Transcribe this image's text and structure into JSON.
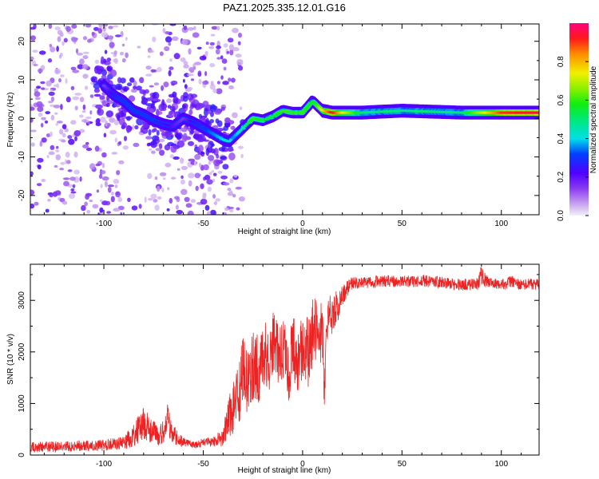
{
  "title": "PAZ1.2025.335.12.01.G16",
  "chart_data": [
    {
      "type": "heatmap",
      "id": "spectrogram",
      "xlabel": "Height of straight line (km)",
      "ylabel": "Frequency (Hz)",
      "xlim": [
        -137,
        119
      ],
      "ylim": [
        -25,
        24.5
      ],
      "xticks": [
        -100,
        -50,
        0,
        50,
        100
      ],
      "xtick_labels": [
        "-100",
        "-50",
        "0",
        "50",
        "100"
      ],
      "yticks": [
        -20,
        -10,
        0,
        10,
        20
      ],
      "ytick_labels": [
        "-20",
        "-10",
        "0",
        "10",
        "20"
      ],
      "ridge": {
        "x": [
          -100,
          -95,
          -90,
          -85,
          -80,
          -75,
          -70,
          -65,
          -60,
          -55,
          -50,
          -45,
          -40,
          -37,
          -35,
          -30,
          -25,
          -20,
          -15,
          -10,
          -5,
          0,
          5,
          7,
          10,
          15,
          20,
          30,
          50,
          80,
          100,
          119
        ],
        "y": [
          8.5,
          6,
          4.5,
          2,
          1,
          -0.5,
          -1.5,
          -2,
          0,
          -1,
          -2.5,
          -4,
          -5.5,
          -6,
          -5,
          -2.5,
          0,
          -0.5,
          0.5,
          2,
          1.5,
          1.5,
          4.5,
          3.5,
          2,
          1.5,
          1.5,
          1.5,
          2,
          1.5,
          1.5,
          1.5
        ],
        "amplitude": [
          0.15,
          0.25,
          0.3,
          0.3,
          0.3,
          0.3,
          0.25,
          0.2,
          0.15,
          0.25,
          0.3,
          0.35,
          0.4,
          0.45,
          0.35,
          0.45,
          0.6,
          0.55,
          0.55,
          0.6,
          0.6,
          0.6,
          0.55,
          0.6,
          0.75,
          0.95,
          0.75,
          0.5,
          0.5,
          0.5,
          0.9,
          0.95
        ]
      },
      "noise_band_x": [
        -137,
        -30
      ]
    },
    {
      "type": "colorbar",
      "id": "amplitude-colorbar",
      "label": "Normalized spectral amplitude",
      "range": [
        0,
        1
      ],
      "ticks": [
        0.0,
        0.2,
        0.4,
        0.6,
        0.8
      ],
      "tick_labels": [
        "0.0",
        "0.2",
        "0.4",
        "0.6",
        "0.8"
      ]
    },
    {
      "type": "line",
      "id": "snr",
      "xlabel": "Height of straight line (km)",
      "ylabel": "SNR (10 * v/v)",
      "xlim": [
        -137,
        119
      ],
      "ylim": [
        0,
        3700
      ],
      "xticks": [
        -100,
        -50,
        0,
        50,
        100
      ],
      "xtick_labels": [
        "-100",
        "-50",
        "0",
        "50",
        "100"
      ],
      "yticks": [
        0,
        1000,
        2000,
        3000
      ],
      "ytick_labels": [
        "0",
        "1000",
        "2000",
        "3000"
      ],
      "color": "#ee2222",
      "series": [
        {
          "name": "SNR",
          "x": [
            -137,
            -120,
            -100,
            -90,
            -85,
            -82,
            -80,
            -75,
            -72,
            -70,
            -68,
            -65,
            -60,
            -55,
            -50,
            -45,
            -40,
            -38,
            -35,
            -32,
            -30,
            -27,
            -25,
            -22,
            -20,
            -17,
            -15,
            -12,
            -10,
            -7,
            -5,
            -2,
            0,
            3,
            5,
            8,
            10,
            11,
            12,
            13,
            15,
            18,
            20,
            23,
            25,
            30,
            40,
            50,
            60,
            70,
            80,
            88,
            90,
            92,
            95,
            100,
            105,
            110,
            115,
            119
          ],
          "y": [
            150,
            170,
            190,
            240,
            380,
            550,
            600,
            450,
            350,
            500,
            680,
            380,
            260,
            210,
            230,
            260,
            350,
            650,
            900,
            1250,
            1600,
            1350,
            1750,
            1700,
            2050,
            1850,
            2200,
            1950,
            2050,
            1700,
            2050,
            1850,
            2100,
            2000,
            2400,
            2500,
            2300,
            1100,
            2700,
            2600,
            2750,
            2900,
            3100,
            3250,
            3350,
            3330,
            3380,
            3360,
            3380,
            3350,
            3300,
            3320,
            3500,
            3380,
            3330,
            3300,
            3360,
            3300,
            3320,
            3300
          ],
          "amplitude": [
            100,
            100,
            110,
            130,
            220,
            300,
            320,
            230,
            170,
            260,
            350,
            200,
            90,
            80,
            90,
            100,
            180,
            350,
            500,
            650,
            700,
            650,
            700,
            700,
            650,
            650,
            600,
            650,
            650,
            700,
            650,
            650,
            600,
            700,
            650,
            600,
            650,
            300,
            450,
            450,
            400,
            300,
            200,
            150,
            120,
            120,
            120,
            110,
            120,
            110,
            110,
            120,
            200,
            130,
            110,
            110,
            120,
            110,
            110,
            110
          ]
        }
      ]
    }
  ]
}
